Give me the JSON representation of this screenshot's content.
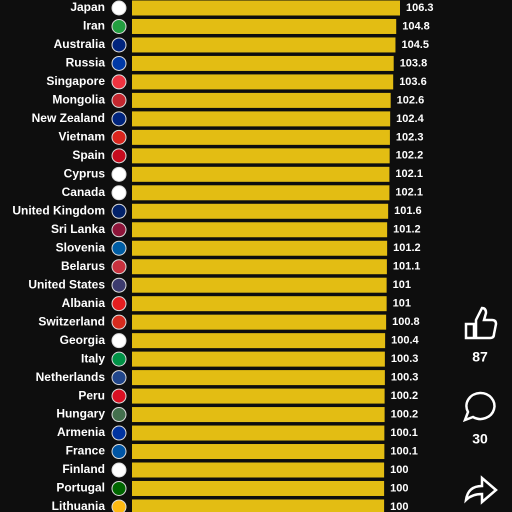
{
  "chart_data": {
    "type": "bar",
    "categories": [
      "Japan",
      "Iran",
      "Australia",
      "Russia",
      "Singapore",
      "Mongolia",
      "New Zealand",
      "Vietnam",
      "Spain",
      "Cyprus",
      "Canada",
      "United Kingdom",
      "Sri Lanka",
      "Slovenia",
      "Belarus",
      "United States",
      "Albania",
      "Switzerland",
      "Georgia",
      "Italy",
      "Netherlands",
      "Peru",
      "Hungary",
      "Armenia",
      "France",
      "Finland",
      "Portugal",
      "Lithuania"
    ],
    "values": [
      106.3,
      104.8,
      104.5,
      103.8,
      103.6,
      102.6,
      102.4,
      102.3,
      102.2,
      102.1,
      102.1,
      101.6,
      101.2,
      101.2,
      101.1,
      101,
      101,
      100.8,
      100.4,
      100.3,
      100.3,
      100.2,
      100.2,
      100.1,
      100.1,
      100,
      100,
      100
    ],
    "color": "#e3bd13"
  },
  "ui": {
    "likes": "87",
    "comments": "30"
  }
}
